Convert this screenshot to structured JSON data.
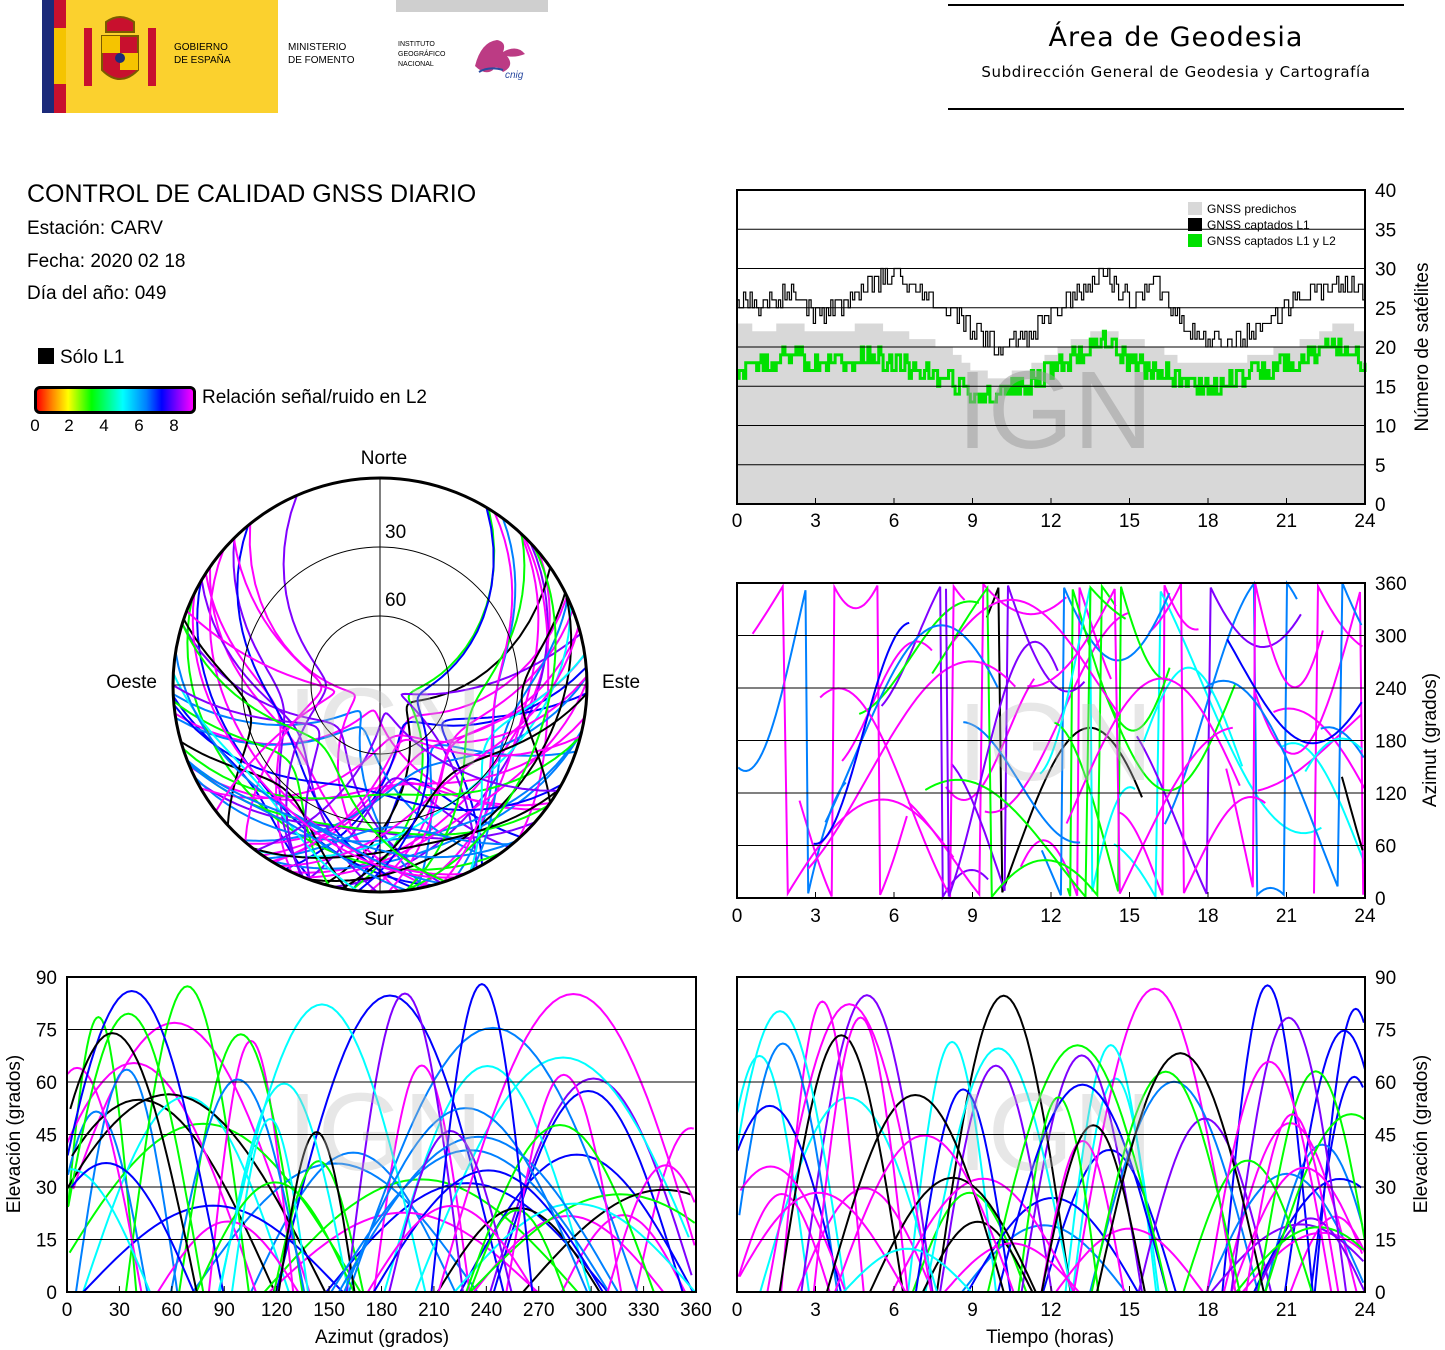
{
  "header": {
    "gov_line1": "GOBIERNO",
    "gov_line2": "DE ESPAÑA",
    "ministry_line1": "MINISTERIO",
    "ministry_line2": "DE FOMENTO",
    "ign_line1": "INSTITUTO",
    "ign_line2": "GEOGRÁFICO",
    "ign_line3": "NACIONAL",
    "cnig_text": "cnig",
    "area_title": "Área de Geodesia",
    "area_subtitle": "Subdirección General de Geodesia y Cartografía"
  },
  "report": {
    "title": "CONTROL DE CALIDAD GNSS DIARIO",
    "station": "Estación: CARV",
    "date": "Fecha: 2020 02 18",
    "doy": "Día del año: 049"
  },
  "legend": {
    "l1_only": "Sólo L1",
    "snr_label": "Relación señal/ruido en L2",
    "snr_ticks": [
      "0",
      "2",
      "4",
      "6",
      "8"
    ]
  },
  "watermark": "IGN",
  "colors": {
    "predicted": "#d8d8d8",
    "captured_l1": "#000000",
    "captured_l1_l2": "#00e000",
    "snr_scale": [
      "#ff0000",
      "#ff8800",
      "#ffff00",
      "#00ff00",
      "#00ffff",
      "#0080ff",
      "#0000ff",
      "#8000ff",
      "#ff00ff"
    ]
  },
  "chart_data": [
    {
      "id": "satellites",
      "type": "area",
      "ylabel": "Número de satélites",
      "xlim": [
        0,
        24
      ],
      "ylim": [
        0,
        40
      ],
      "xticks": [
        "0",
        "3",
        "6",
        "9",
        "12",
        "15",
        "18",
        "21",
        "24"
      ],
      "yticks": [
        "0",
        "5",
        "10",
        "15",
        "20",
        "25",
        "30",
        "35",
        "40"
      ],
      "grid": "horizontal",
      "legend_position": "top-right",
      "series": [
        {
          "name": "GNSS predichos",
          "color": "#d8d8d8",
          "x": [
            0,
            1,
            2,
            3,
            4,
            5,
            6,
            7,
            8,
            9,
            10,
            11,
            12,
            13,
            14,
            15,
            16,
            17,
            18,
            19,
            20,
            21,
            22,
            23,
            24
          ],
          "values": [
            23,
            22,
            23,
            22,
            22,
            23,
            22,
            21,
            20,
            17,
            16,
            17,
            19,
            21,
            22,
            21,
            20,
            18,
            18,
            18,
            19,
            20,
            21,
            23,
            22
          ]
        },
        {
          "name": "GNSS captados L1",
          "color": "#000000",
          "x": [
            0,
            1,
            2,
            3,
            4,
            5,
            6,
            7,
            8,
            9,
            10,
            11,
            12,
            13,
            14,
            15,
            16,
            17,
            18,
            19,
            20,
            21,
            22,
            23,
            24
          ],
          "values": [
            26,
            25,
            27,
            24,
            25,
            28,
            29,
            27,
            25,
            22,
            20,
            21,
            24,
            27,
            29,
            26,
            28,
            23,
            21,
            21,
            22,
            25,
            27,
            28,
            27
          ]
        },
        {
          "name": "GNSS captados L1 y L2",
          "color": "#00e000",
          "x": [
            0,
            1,
            2,
            3,
            4,
            5,
            6,
            7,
            8,
            9,
            10,
            11,
            12,
            13,
            14,
            15,
            16,
            17,
            18,
            19,
            20,
            21,
            22,
            23,
            24
          ],
          "values": [
            17,
            18,
            19,
            18,
            18,
            19,
            18,
            17,
            16,
            14,
            14,
            15,
            17,
            19,
            21,
            18,
            17,
            16,
            15,
            16,
            17,
            18,
            19,
            20,
            18
          ]
        }
      ]
    },
    {
      "id": "skyplot",
      "type": "scatter",
      "projection": "polar",
      "directions": {
        "north": "Norte",
        "south": "Sur",
        "east": "Este",
        "west": "Oeste"
      },
      "ring_labels": [
        "30",
        "60"
      ],
      "rings_deg": [
        30,
        60
      ]
    },
    {
      "id": "azimuth_time",
      "type": "line",
      "ylabel": "Azimut (grados)",
      "xlim": [
        0,
        24
      ],
      "ylim": [
        0,
        360
      ],
      "xticks": [
        "0",
        "3",
        "6",
        "9",
        "12",
        "15",
        "18",
        "21",
        "24"
      ],
      "yticks": [
        "0",
        "60",
        "120",
        "180",
        "240",
        "300",
        "360"
      ],
      "grid": "horizontal"
    },
    {
      "id": "elevation_azimuth",
      "type": "line",
      "xlabel": "Azimut (grados)",
      "ylabel": "Elevación (grados)",
      "xlim": [
        0,
        360
      ],
      "ylim": [
        0,
        90
      ],
      "xticks": [
        "0",
        "30",
        "60",
        "90",
        "120",
        "150",
        "180",
        "210",
        "240",
        "270",
        "300",
        "330",
        "360"
      ],
      "yticks": [
        "0",
        "15",
        "30",
        "45",
        "60",
        "75",
        "90"
      ],
      "grid": "horizontal"
    },
    {
      "id": "elevation_time",
      "type": "line",
      "xlabel": "Tiempo (horas)",
      "ylabel": "Elevación (grados)",
      "xlim": [
        0,
        24
      ],
      "ylim": [
        0,
        90
      ],
      "xticks": [
        "0",
        "3",
        "6",
        "9",
        "12",
        "15",
        "18",
        "21",
        "24"
      ],
      "yticks": [
        "0",
        "15",
        "30",
        "45",
        "60",
        "75",
        "90"
      ],
      "grid": "horizontal"
    }
  ]
}
